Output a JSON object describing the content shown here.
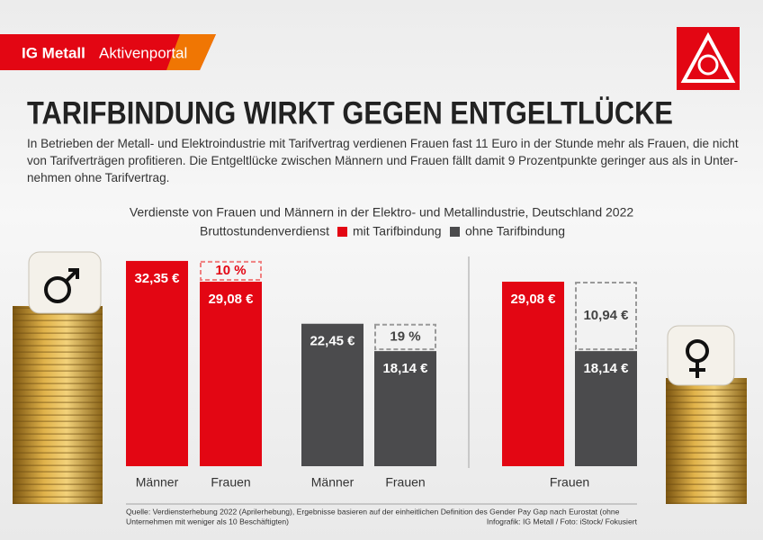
{
  "header": {
    "brand": "IG Metall",
    "portal": "Aktivenportal"
  },
  "title": "TARIFBINDUNG WIRKT GEGEN ENTGELTLÜCKE",
  "description": [
    "In Betrieben der Metall- und Elektroindustrie mit Tarifvertrag verdienen Frauen fast 11 Euro in der Stunde mehr als Frauen, die nicht",
    "von Tarifverträgen profitieren. Die Entgeltlücke zwischen Männern und Frauen fällt damit 9 Prozentpunkte geringer aus als in Unter-",
    "nehmen ohne Tarifvertrag."
  ],
  "chart_data": {
    "type": "bar",
    "title": "Verdienste von Frauen und Männern in der Elektro- und Metallindustrie, Deutschland 2022",
    "legend_title": "Bruttostundenverdienst",
    "series": [
      {
        "name": "mit Tarifbindung",
        "color": "#e30613"
      },
      {
        "name": "ohne Tarifbindung",
        "color": "#4b4b4d"
      }
    ],
    "groups": [
      {
        "bars": [
          {
            "category": "Männer",
            "series": 0,
            "value": 32.35,
            "value_label": "32,35 €"
          },
          {
            "category": "Frauen",
            "series": 0,
            "value": 29.08,
            "value_label": "29,08 €",
            "gap": {
              "value": 10,
              "label": "10 %"
            }
          }
        ]
      },
      {
        "bars": [
          {
            "category": "Männer",
            "series": 1,
            "value": 22.45,
            "value_label": "22,45 €"
          },
          {
            "category": "Frauen",
            "series": 1,
            "value": 18.14,
            "value_label": "18,14 €",
            "gap": {
              "value": 19,
              "label": "19 %"
            }
          }
        ]
      },
      {
        "category": "Frauen",
        "bars": [
          {
            "series": 0,
            "value": 29.08,
            "value_label": "29,08 €"
          },
          {
            "series": 1,
            "value": 18.14,
            "value_label": "18,14 €",
            "gap": {
              "value": 10.94,
              "label": "10,94 €"
            }
          }
        ]
      }
    ]
  },
  "footer": {
    "source": [
      "Quelle: Verdiensterhebung 2022 (Aprilerhebung), Ergebnisse basieren auf der einheitlichen Definition des Gender Pay Gap nach Eurostat (ohne",
      "Unternehmen mit weniger als 10 Beschäftigten)"
    ],
    "credit": "Infografik: IG Metall / Foto: iStock/ Fokusiert"
  }
}
